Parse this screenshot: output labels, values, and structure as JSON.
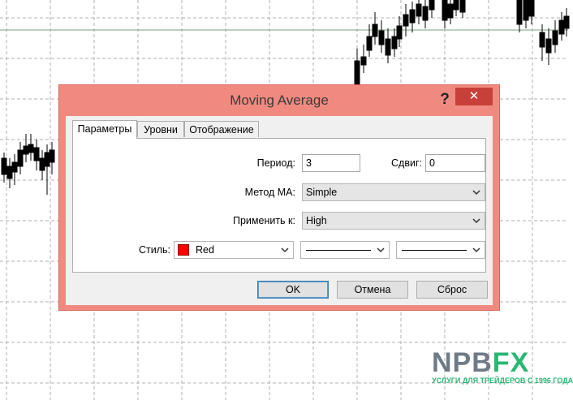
{
  "dialog": {
    "title": "Moving Average",
    "help_label": "?",
    "close_label": "✕"
  },
  "tabs": [
    {
      "label": "Параметры"
    },
    {
      "label": "Уровни"
    },
    {
      "label": "Отображение"
    }
  ],
  "form": {
    "period_label": "Период:",
    "period_value": "3",
    "shift_label": "Сдвиг:",
    "shift_value": "0",
    "method_label": "Метод MA:",
    "method_value": "Simple",
    "apply_label": "Применить к:",
    "apply_value": "High",
    "style_label": "Стиль:",
    "color_value": "Red",
    "color_hex": "#ff0000"
  },
  "buttons": {
    "ok": "OK",
    "cancel": "Отмена",
    "reset": "Сброс"
  },
  "logo": {
    "main_npb": "NPB",
    "main_fx": "FX",
    "subtitle": "УСЛУГИ ДЛЯ ТРЕЙДЕРОВ С 1996 ГОДА"
  },
  "colors": {
    "dialog_frame": "#f08a80",
    "close_button": "#c7403a",
    "logo_gray": "#6e7a86",
    "logo_green": "#2bb673"
  }
}
